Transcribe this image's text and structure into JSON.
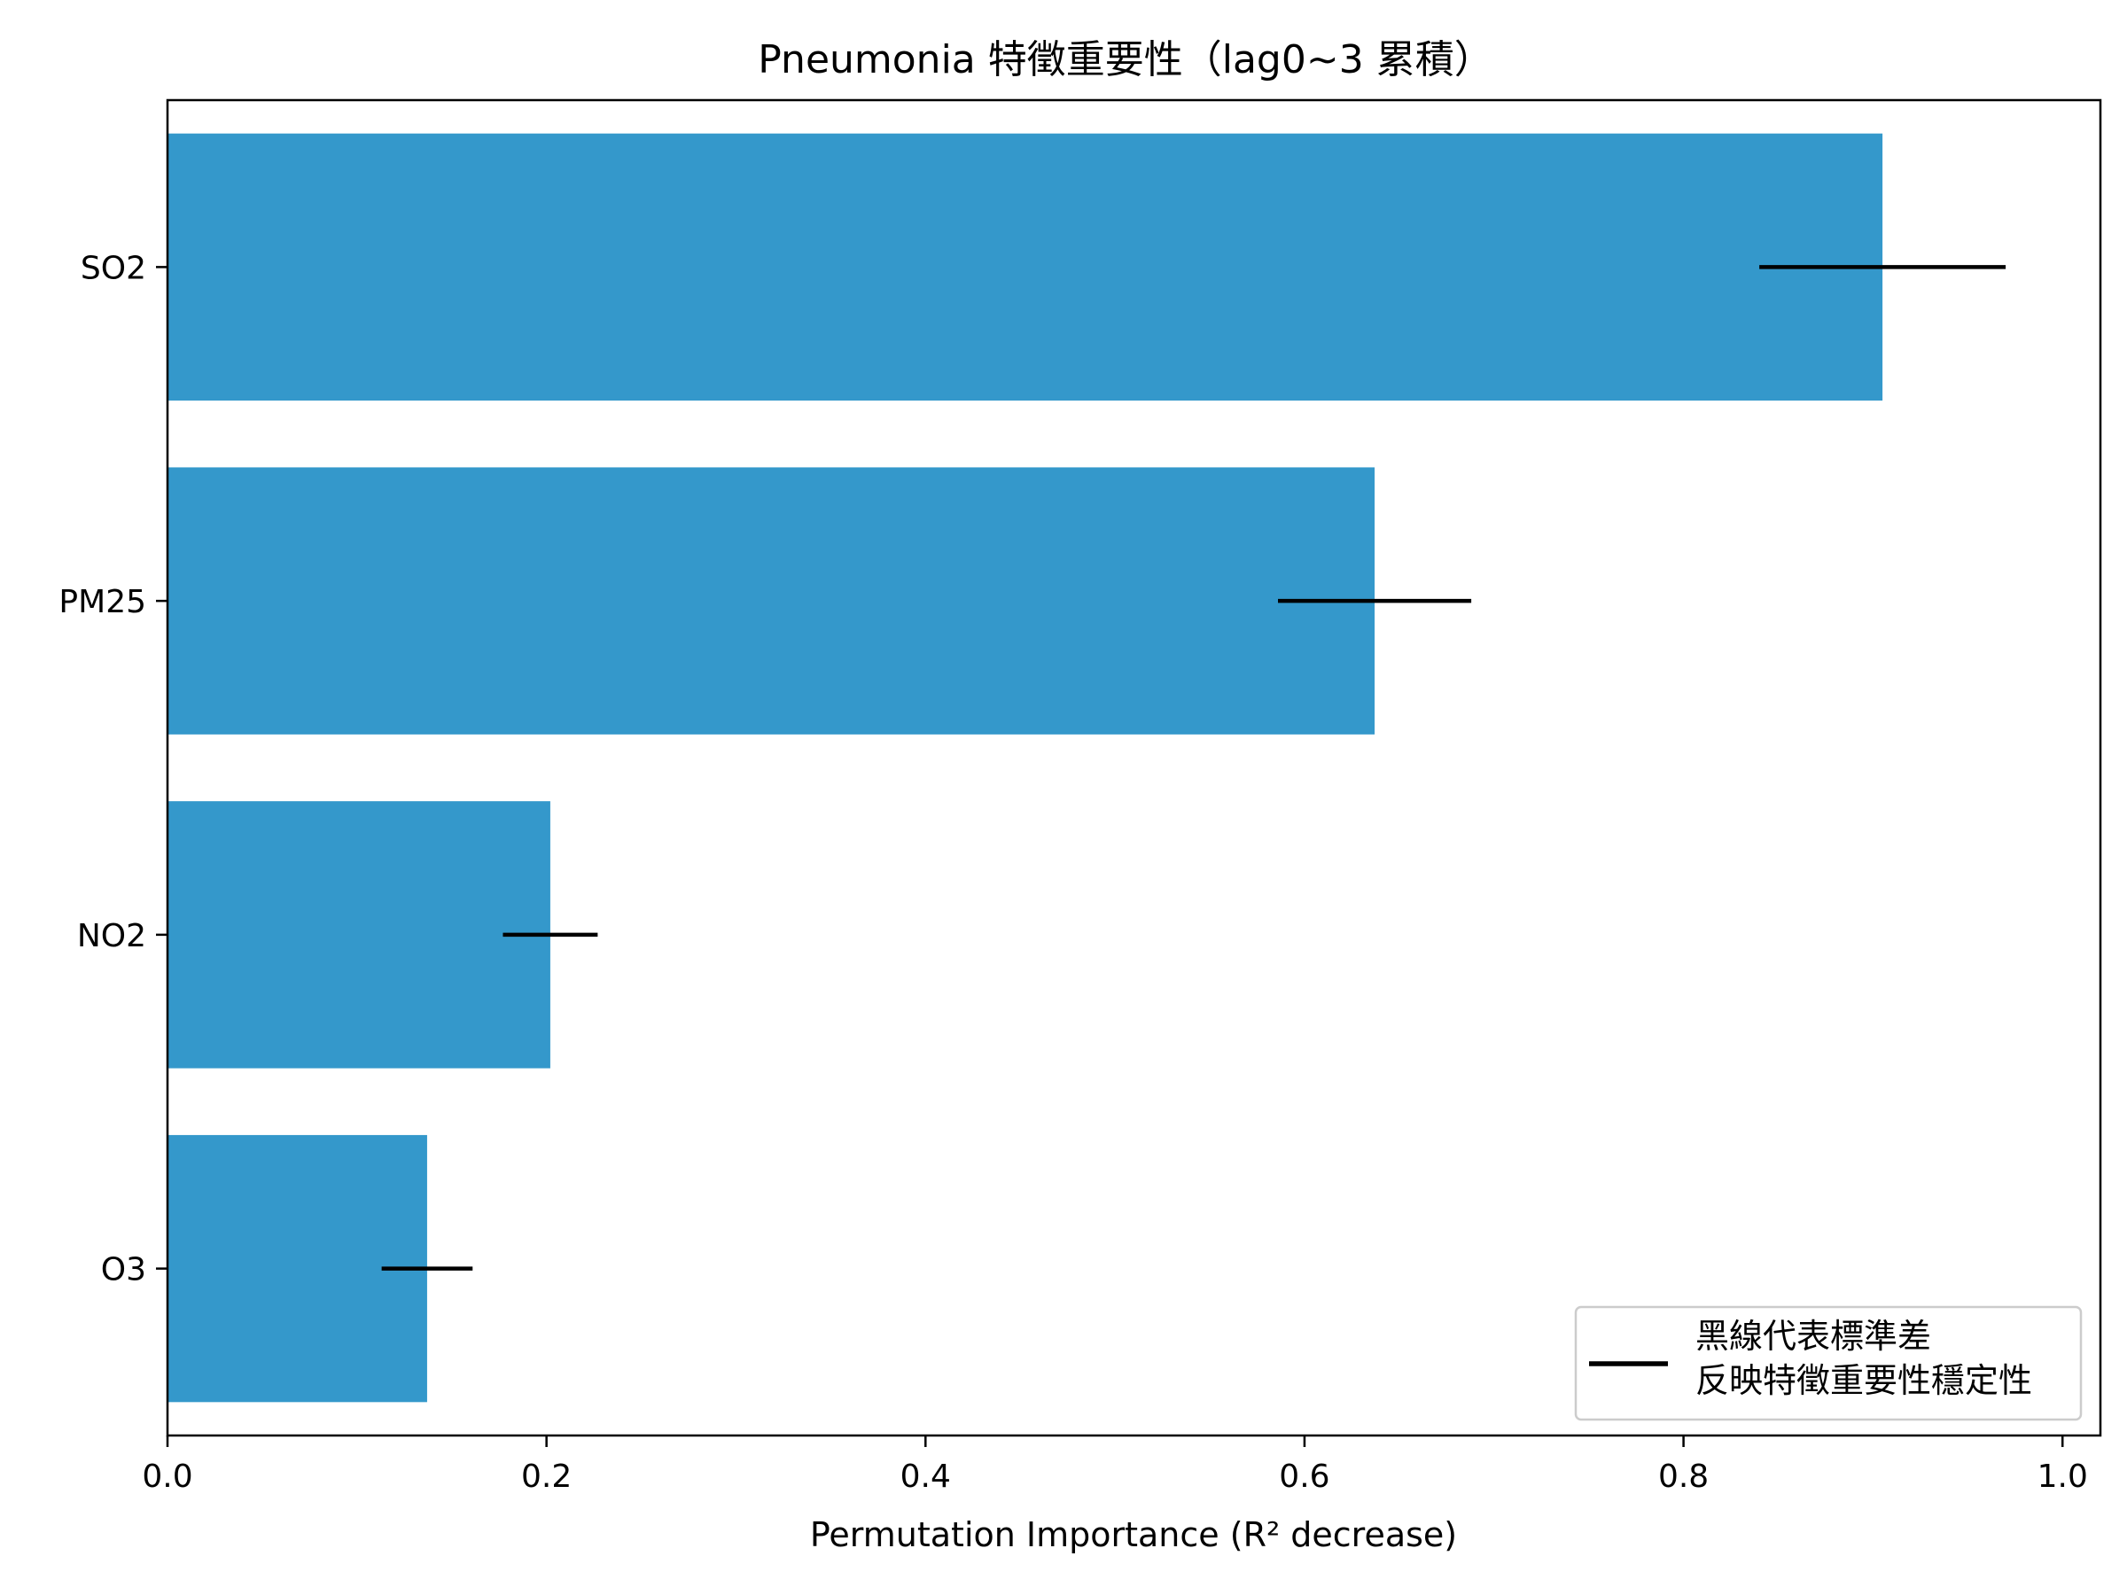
{
  "chart_data": {
    "type": "bar",
    "orientation": "horizontal",
    "title": "Pneumonia 特徵重要性（lag0~3 累積）",
    "xlabel": "Permutation Importance (R² decrease)",
    "ylabel": "",
    "categories": [
      "SO2",
      "PM25",
      "NO2",
      "O3"
    ],
    "values": [
      0.905,
      0.637,
      0.202,
      0.137
    ],
    "errors": [
      0.065,
      0.051,
      0.025,
      0.024
    ],
    "xlim": [
      0.0,
      1.02
    ],
    "xticks": [
      "0.0",
      "0.2",
      "0.4",
      "0.6",
      "0.8",
      "1.0"
    ],
    "xtick_values": [
      0.0,
      0.2,
      0.4,
      0.6,
      0.8,
      1.0
    ],
    "bar_color": "#3498cb",
    "error_color": "#000000",
    "grid": false,
    "legend": {
      "placement": "lower-right",
      "lines": [
        "黑線代表標準差",
        "反映特徵重要性穩定性"
      ]
    }
  }
}
